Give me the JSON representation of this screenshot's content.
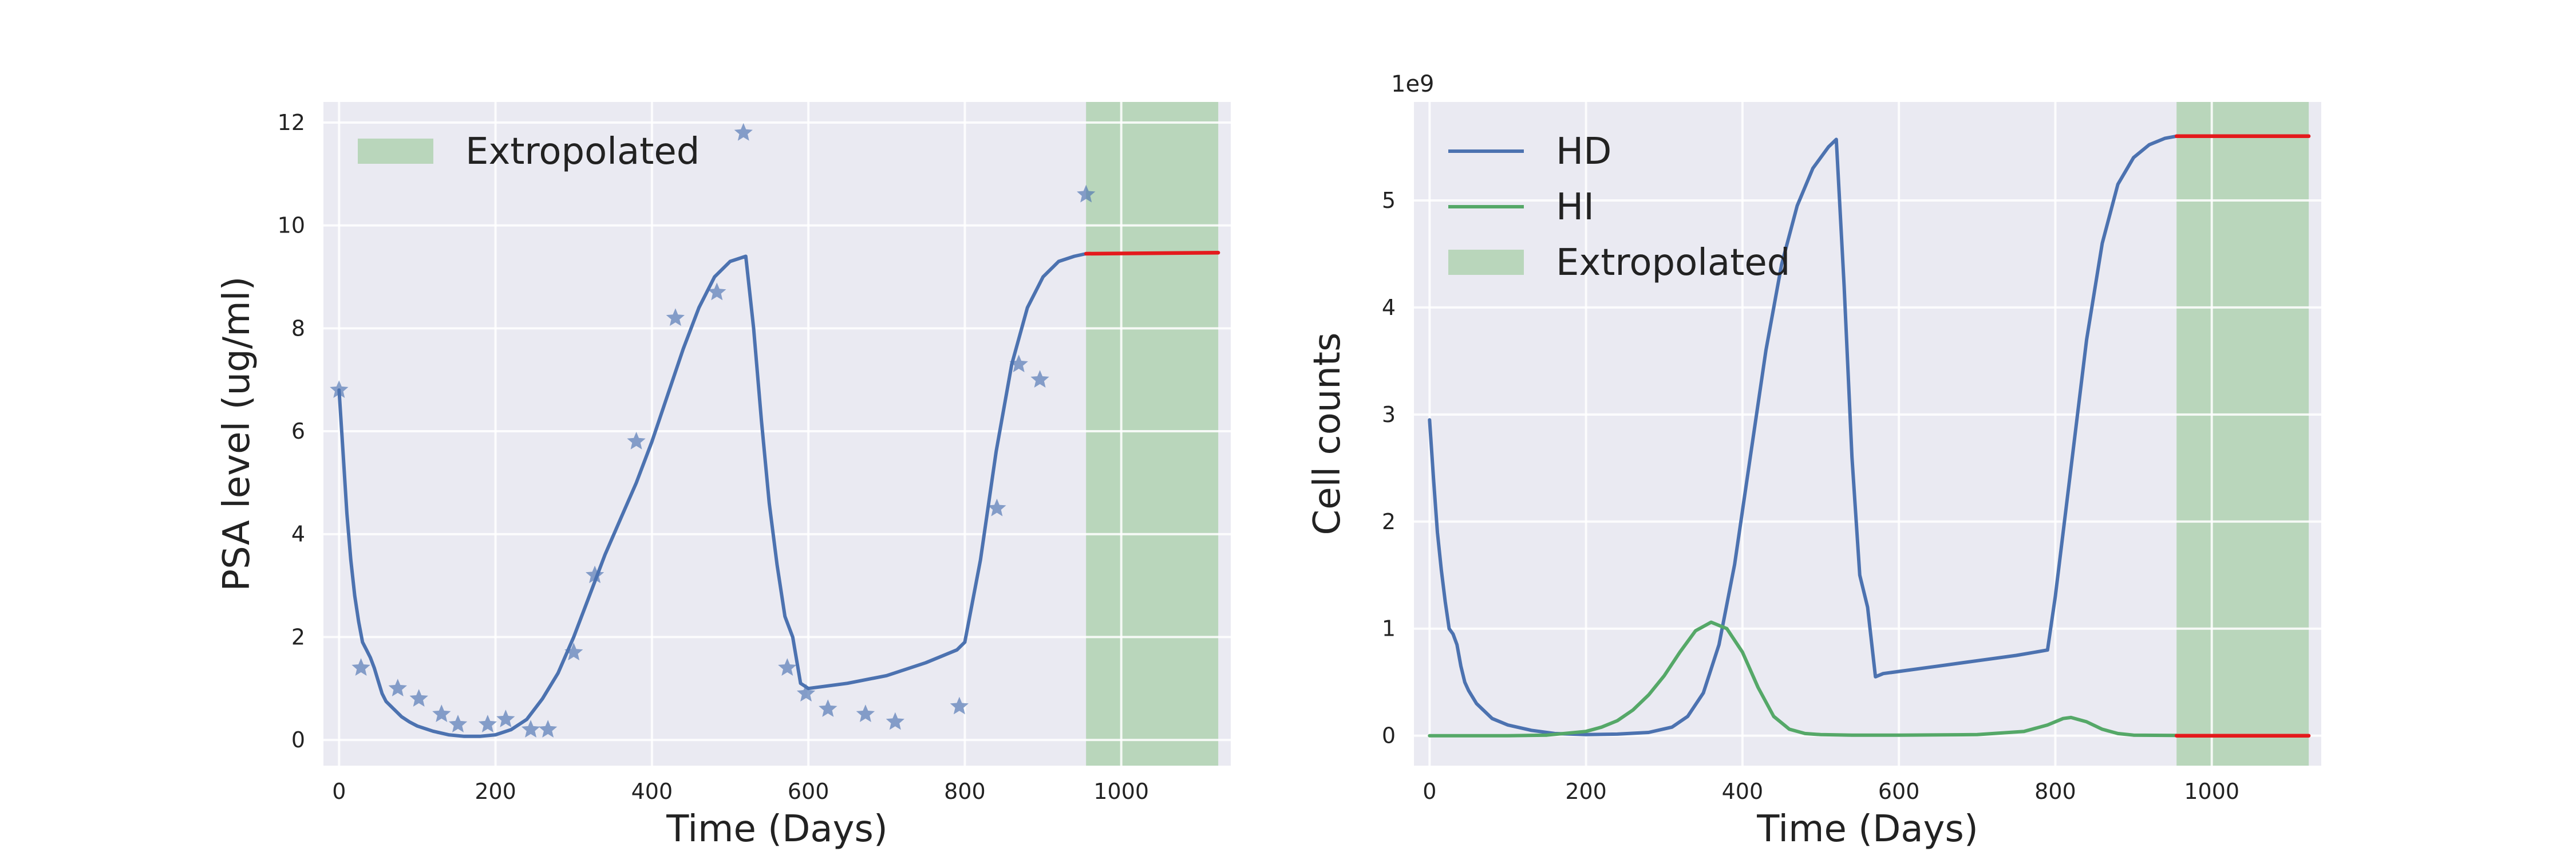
{
  "colors": {
    "axes_bg": "#EAEAF2",
    "grid": "#FFFFFF",
    "model_line": "#4C72B0",
    "hi_line": "#55A868",
    "extrapolated_line": "#E41A1C",
    "extrapolated_band": "#A8CFA8"
  },
  "chart_data": [
    {
      "type": "line",
      "xlabel": "Time (Days)",
      "ylabel": "PSA level (ug/ml)",
      "xlim": [
        -20,
        1140
      ],
      "ylim": [
        -0.5,
        12.4
      ],
      "xticks": [
        0,
        200,
        400,
        600,
        800,
        1000
      ],
      "yticks": [
        0,
        2,
        4,
        6,
        8,
        10,
        12
      ],
      "grid": true,
      "legend": {
        "placement": "upper-left",
        "entries": [
          "Extropolated"
        ]
      },
      "extrapolated_span": [
        955,
        1124
      ],
      "series": [
        {
          "kind": "line",
          "x": [
            0,
            5,
            10,
            15,
            20,
            25,
            30,
            35,
            40,
            45,
            50,
            55,
            60,
            70,
            80,
            90,
            100,
            120,
            140,
            160,
            180,
            200,
            220,
            240,
            260,
            280,
            300,
            320,
            340,
            360,
            380,
            400,
            420,
            440,
            460,
            480,
            500,
            510,
            520,
            530,
            540,
            550,
            560,
            570,
            580,
            590,
            600,
            650,
            700,
            750,
            790,
            800,
            820,
            840,
            860,
            880,
            900,
            920,
            940,
            955
          ],
          "values": [
            6.8,
            5.6,
            4.4,
            3.5,
            2.8,
            2.3,
            1.9,
            1.75,
            1.6,
            1.4,
            1.15,
            0.9,
            0.75,
            0.6,
            0.45,
            0.35,
            0.27,
            0.17,
            0.1,
            0.07,
            0.07,
            0.1,
            0.2,
            0.4,
            0.8,
            1.3,
            2.0,
            2.8,
            3.6,
            4.3,
            5.0,
            5.8,
            6.7,
            7.6,
            8.4,
            9.0,
            9.3,
            9.35,
            9.4,
            8.0,
            6.2,
            4.6,
            3.4,
            2.4,
            2.0,
            1.1,
            1.0,
            1.1,
            1.25,
            1.5,
            1.75,
            1.9,
            3.5,
            5.6,
            7.3,
            8.4,
            9.0,
            9.3,
            9.4,
            9.45
          ]
        },
        {
          "kind": "line",
          "extrapolated": true,
          "x": [
            955,
            1124
          ],
          "values": [
            9.45,
            9.47
          ]
        },
        {
          "kind": "scatter",
          "marker": "star",
          "x": [
            0,
            28,
            75,
            102,
            131,
            152,
            190,
            213,
            245,
            267,
            300,
            327,
            380,
            430,
            483,
            517,
            573,
            597,
            625,
            673,
            711,
            793,
            841,
            869,
            896,
            955
          ],
          "values": [
            6.8,
            1.4,
            1.0,
            0.8,
            0.5,
            0.3,
            0.3,
            0.4,
            0.2,
            0.2,
            1.7,
            3.2,
            5.8,
            8.2,
            8.7,
            11.8,
            1.4,
            0.9,
            0.6,
            0.5,
            0.35,
            0.65,
            4.5,
            7.3,
            7.0,
            10.6
          ]
        }
      ]
    },
    {
      "type": "line",
      "xlabel": "Time (Days)",
      "ylabel": "Cell counts",
      "y_offset_label": "1e9",
      "xlim": [
        -20,
        1140
      ],
      "ylim": [
        -0.28,
        5.92
      ],
      "xticks": [
        0,
        200,
        400,
        600,
        800,
        1000
      ],
      "yticks": [
        0,
        1,
        2,
        3,
        4,
        5
      ],
      "grid": true,
      "legend": {
        "placement": "upper-left",
        "entries": [
          "HD",
          "HI",
          "Extropolated"
        ]
      },
      "extrapolated_span": [
        955,
        1124
      ],
      "series": [
        {
          "name": "HD",
          "x": [
            0,
            5,
            10,
            15,
            20,
            25,
            30,
            35,
            40,
            45,
            50,
            60,
            80,
            100,
            130,
            160,
            200,
            240,
            280,
            310,
            330,
            350,
            370,
            390,
            410,
            430,
            450,
            470,
            490,
            510,
            520,
            530,
            540,
            550,
            560,
            570,
            580,
            650,
            700,
            750,
            790,
            800,
            820,
            840,
            860,
            880,
            900,
            920,
            940,
            955
          ],
          "values": [
            2.95,
            2.4,
            1.9,
            1.55,
            1.25,
            1.0,
            0.95,
            0.85,
            0.65,
            0.5,
            0.42,
            0.3,
            0.16,
            0.1,
            0.05,
            0.02,
            0.01,
            0.015,
            0.03,
            0.08,
            0.18,
            0.4,
            0.85,
            1.6,
            2.6,
            3.6,
            4.4,
            4.95,
            5.3,
            5.5,
            5.57,
            4.2,
            2.6,
            1.5,
            1.2,
            0.55,
            0.58,
            0.65,
            0.7,
            0.75,
            0.8,
            1.3,
            2.5,
            3.7,
            4.6,
            5.15,
            5.4,
            5.52,
            5.58,
            5.6
          ]
        },
        {
          "name": "HI",
          "x": [
            0,
            100,
            150,
            200,
            220,
            240,
            260,
            280,
            300,
            320,
            340,
            360,
            380,
            400,
            420,
            440,
            460,
            480,
            500,
            540,
            600,
            700,
            760,
            790,
            810,
            820,
            840,
            860,
            880,
            900,
            955
          ],
          "values": [
            0,
            0,
            0.005,
            0.04,
            0.08,
            0.14,
            0.24,
            0.38,
            0.56,
            0.78,
            0.98,
            1.06,
            1.0,
            0.78,
            0.45,
            0.18,
            0.06,
            0.02,
            0.01,
            0.005,
            0.005,
            0.01,
            0.04,
            0.1,
            0.16,
            0.17,
            0.13,
            0.06,
            0.02,
            0.005,
            0.002
          ]
        },
        {
          "extrapolated": true,
          "x": [
            955,
            1124
          ],
          "values": [
            5.6,
            5.6
          ]
        },
        {
          "extrapolated": true,
          "x": [
            955,
            1124
          ],
          "values": [
            0.0,
            0.0
          ]
        }
      ]
    }
  ]
}
